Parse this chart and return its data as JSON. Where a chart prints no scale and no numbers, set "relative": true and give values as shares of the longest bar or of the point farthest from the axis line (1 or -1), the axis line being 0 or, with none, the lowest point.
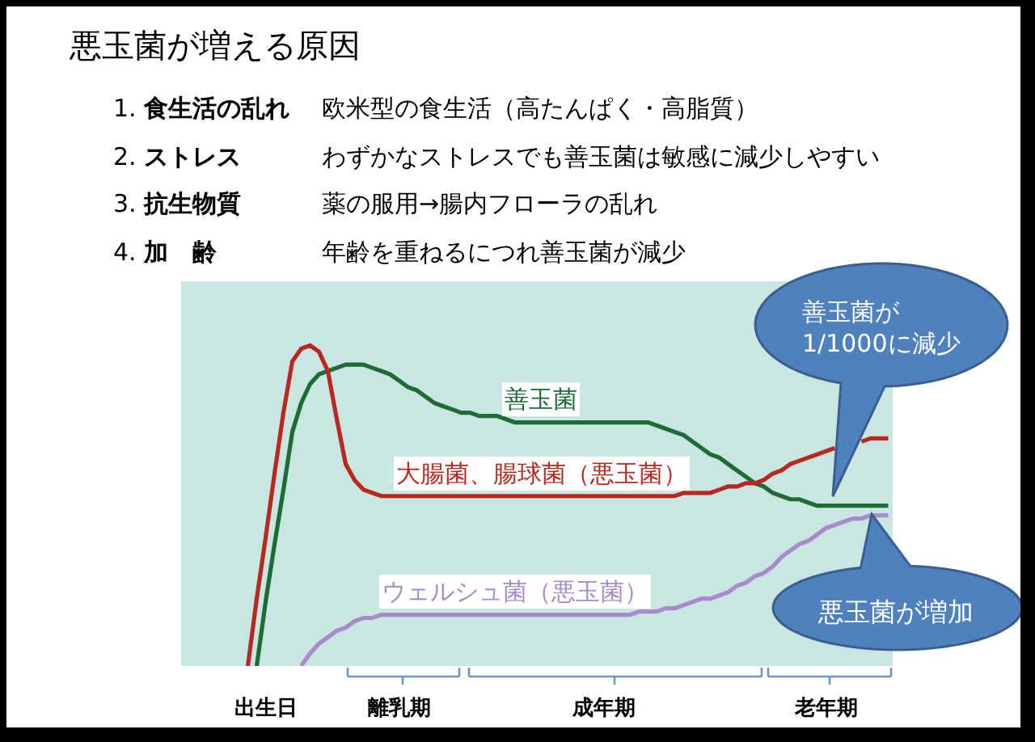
{
  "chart_data": {
    "type": "line",
    "title": "悪玉菌が増える原因",
    "annotations": [
      "1. 食生活の乱れ",
      "欧米型の食生活（高たんぱく・高脂質）",
      "2. ストレス",
      "わずかなストレスでも善玉菌は敏感に減少しやすい",
      "3. 抗生物質",
      "薬の服用→腸内フローラの乱れ",
      "4. 加　齢",
      "年齢を重ねるにつれ善玉菌が減少",
      "善玉菌が\n1/1000に減少",
      "悪玉菌が増加"
    ],
    "categories": [
      null,
      null,
      null,
      null,
      null,
      null,
      null,
      null,
      null,
      "出生日",
      null,
      null,
      null,
      null,
      null,
      null,
      null,
      null,
      null,
      null,
      null,
      null,
      null,
      null,
      "離乳期",
      null,
      null,
      null,
      null,
      null,
      null,
      null,
      null,
      null,
      null,
      null,
      null,
      null,
      null,
      null,
      null,
      null,
      null,
      null,
      null,
      null,
      null,
      "成年期",
      null,
      null,
      null,
      null,
      null,
      null,
      null,
      null,
      null,
      null,
      null,
      null,
      null,
      null,
      null,
      null,
      null,
      null,
      null,
      null,
      null,
      null,
      null,
      null,
      "老年期",
      null,
      null,
      null,
      null,
      null,
      null,
      null
    ],
    "series": [
      {
        "name": "善玉菌",
        "color": "#1e6b35",
        "values": [
          null,
          null,
          null,
          null,
          null,
          null,
          null,
          null,
          0,
          0.2,
          0.38,
          0.55,
          0.73,
          0.82,
          0.88,
          0.91,
          0.92,
          0.93,
          0.94,
          0.94,
          0.94,
          0.93,
          0.92,
          0.91,
          0.89,
          0.87,
          0.86,
          0.84,
          0.82,
          0.81,
          0.8,
          0.79,
          0.79,
          0.78,
          0.78,
          0.78,
          0.77,
          0.76,
          0.76,
          0.76,
          0.76,
          0.76,
          0.76,
          0.76,
          0.76,
          0.76,
          0.76,
          0.76,
          0.76,
          0.76,
          0.76,
          0.76,
          0.76,
          0.75,
          0.74,
          0.73,
          0.72,
          0.7,
          0.68,
          0.66,
          0.65,
          0.63,
          0.61,
          0.59,
          0.57,
          0.56,
          0.54,
          0.53,
          0.52,
          0.52,
          0.51,
          0.5,
          0.5,
          0.5,
          0.5,
          0.5,
          0.5,
          0.5,
          0.5,
          0.5
        ]
      },
      {
        "name": "大腸菌、腸球菌（悪玉菌）",
        "color": "#b8281e",
        "values": [
          null,
          null,
          null,
          null,
          null,
          null,
          null,
          0,
          0.21,
          0.4,
          0.6,
          0.79,
          0.95,
          0.99,
          1,
          0.98,
          0.92,
          0.77,
          0.63,
          0.58,
          0.55,
          0.54,
          0.53,
          0.53,
          0.53,
          0.53,
          0.53,
          0.53,
          0.53,
          0.53,
          0.53,
          0.53,
          0.53,
          0.53,
          0.53,
          0.53,
          0.53,
          0.53,
          0.53,
          0.53,
          0.53,
          0.53,
          0.53,
          0.53,
          0.53,
          0.53,
          0.53,
          0.53,
          0.53,
          0.53,
          0.53,
          0.53,
          0.53,
          0.53,
          0.53,
          0.53,
          0.54,
          0.54,
          0.54,
          0.54,
          0.55,
          0.56,
          0.56,
          0.57,
          0.57,
          0.58,
          0.6,
          0.61,
          0.63,
          0.64,
          0.65,
          0.66,
          0.67,
          0.68,
          null,
          null,
          0.7,
          0.71,
          0.71,
          0.71
        ]
      },
      {
        "name": "ウェルシュ菌（悪玉菌）",
        "color": "#a88bc8",
        "values": [
          null,
          null,
          null,
          null,
          null,
          null,
          null,
          null,
          null,
          null,
          null,
          null,
          null,
          0,
          0.04,
          0.07,
          0.09,
          0.11,
          0.12,
          0.14,
          0.15,
          0.15,
          0.16,
          0.16,
          0.16,
          0.16,
          0.16,
          0.16,
          0.16,
          0.16,
          0.16,
          0.16,
          0.16,
          0.16,
          0.16,
          0.16,
          0.16,
          0.16,
          0.16,
          0.16,
          0.16,
          0.16,
          0.16,
          0.16,
          0.16,
          0.16,
          0.16,
          0.16,
          0.16,
          0.16,
          0.16,
          0.17,
          0.17,
          0.17,
          0.18,
          0.18,
          0.19,
          0.2,
          0.21,
          0.21,
          0.22,
          0.23,
          0.25,
          0.26,
          0.28,
          0.29,
          0.31,
          0.34,
          0.36,
          0.38,
          0.39,
          0.41,
          0.43,
          0.44,
          0.45,
          0.46,
          0.46,
          0.47,
          0.47,
          0.47
        ]
      }
    ],
    "relative": true,
    "grid": false,
    "legend": false
  }
}
